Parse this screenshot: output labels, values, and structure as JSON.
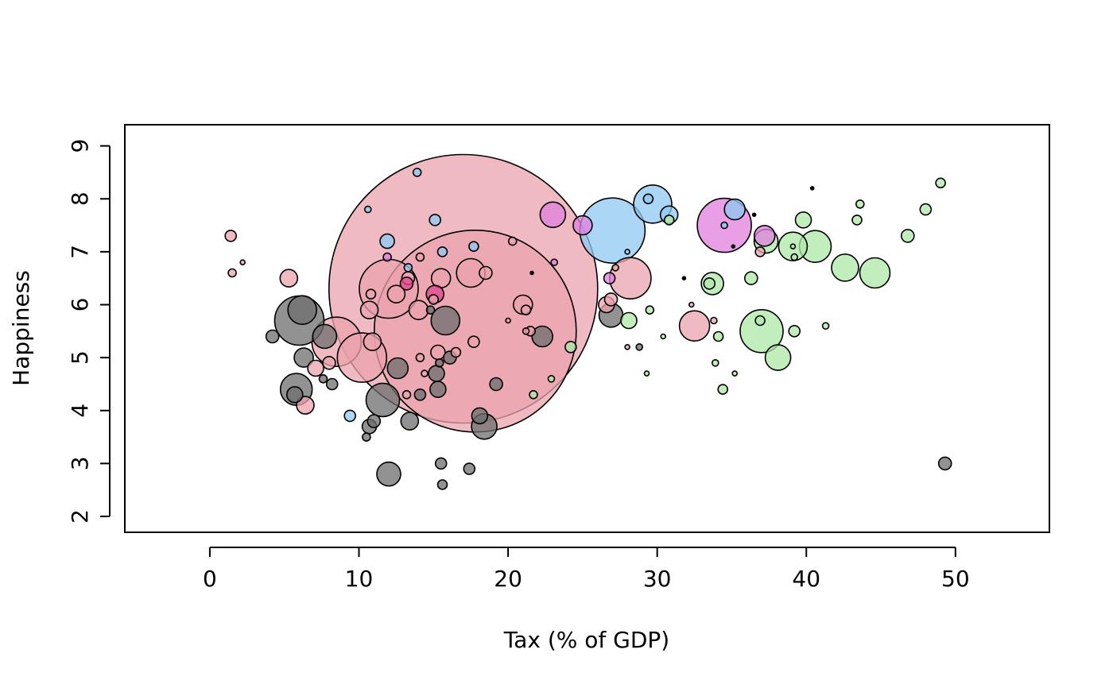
{
  "chart_data": {
    "type": "scatter",
    "subtype": "bubble",
    "title": "",
    "xlabel": "Tax (% of GDP)",
    "ylabel": "Happiness",
    "xlim": [
      -5.7,
      56.3
    ],
    "ylim": [
      1.7,
      9.4
    ],
    "xticks": [
      0,
      10,
      20,
      30,
      40,
      50
    ],
    "yticks": [
      2,
      3,
      4,
      5,
      6,
      7,
      8,
      9
    ],
    "grid": false,
    "legend": "none",
    "size_unit": "bubble radius (relative)",
    "colors": {
      "pink": "#EBA3AE",
      "gray": "#6E6E6E",
      "blue": "#8FC8F1",
      "green": "#AEE8A8",
      "magenta": "#E07FDE",
      "hotpink": "#E0448F",
      "outline": "#000000"
    },
    "series": [
      {
        "name": "pink",
        "points": [
          {
            "x": 17.0,
            "y": 6.3,
            "r": 169
          },
          {
            "x": 17.8,
            "y": 5.5,
            "r": 127
          },
          {
            "x": 12.0,
            "y": 6.3,
            "r": 37
          },
          {
            "x": 8.5,
            "y": 5.3,
            "r": 31
          },
          {
            "x": 10.2,
            "y": 5.0,
            "r": 31
          },
          {
            "x": 28.2,
            "y": 6.5,
            "r": 26
          },
          {
            "x": 32.5,
            "y": 5.6,
            "r": 19
          },
          {
            "x": 17.5,
            "y": 6.6,
            "r": 18
          },
          {
            "x": 15.5,
            "y": 6.5,
            "r": 12
          },
          {
            "x": 14.0,
            "y": 5.9,
            "r": 12
          },
          {
            "x": 21.0,
            "y": 6.0,
            "r": 12
          },
          {
            "x": 12.5,
            "y": 6.2,
            "r": 11
          },
          {
            "x": 10.9,
            "y": 5.3,
            "r": 11
          },
          {
            "x": 5.3,
            "y": 6.5,
            "r": 11
          },
          {
            "x": 10.7,
            "y": 5.9,
            "r": 11
          },
          {
            "x": 6.4,
            "y": 4.1,
            "r": 11
          },
          {
            "x": 7.1,
            "y": 4.8,
            "r": 10
          },
          {
            "x": 26.6,
            "y": 6.0,
            "r": 10
          },
          {
            "x": 15.3,
            "y": 5.1,
            "r": 9
          },
          {
            "x": 13.3,
            "y": 6.5,
            "r": 8
          },
          {
            "x": 18.5,
            "y": 6.6,
            "r": 8
          },
          {
            "x": 8.0,
            "y": 4.9,
            "r": 8
          },
          {
            "x": 26.9,
            "y": 6.1,
            "r": 8
          },
          {
            "x": 17.7,
            "y": 5.3,
            "r": 7
          },
          {
            "x": 1.4,
            "y": 7.3,
            "r": 7
          },
          {
            "x": 10.8,
            "y": 6.2,
            "r": 6
          },
          {
            "x": 16.5,
            "y": 5.1,
            "r": 6
          },
          {
            "x": 21.5,
            "y": 5.5,
            "r": 6
          },
          {
            "x": 21.2,
            "y": 5.9,
            "r": 6
          },
          {
            "x": 36.9,
            "y": 7.0,
            "r": 6
          },
          {
            "x": 15.0,
            "y": 6.1,
            "r": 6
          },
          {
            "x": 20.3,
            "y": 7.2,
            "r": 5
          },
          {
            "x": 1.5,
            "y": 6.6,
            "r": 5
          },
          {
            "x": 14.1,
            "y": 6.9,
            "r": 5
          },
          {
            "x": 13.2,
            "y": 4.3,
            "r": 5
          },
          {
            "x": 14.1,
            "y": 5.0,
            "r": 5
          },
          {
            "x": 14.4,
            "y": 4.7,
            "r": 4
          },
          {
            "x": 21.2,
            "y": 5.5,
            "r": 4
          },
          {
            "x": 33.8,
            "y": 5.7,
            "r": 4
          },
          {
            "x": 27.2,
            "y": 6.7,
            "r": 4
          },
          {
            "x": 2.2,
            "y": 6.8,
            "r": 3
          },
          {
            "x": 20.0,
            "y": 5.7,
            "r": 3
          },
          {
            "x": 28.0,
            "y": 5.2,
            "r": 3
          },
          {
            "x": 32.3,
            "y": 6.0,
            "r": 3
          }
        ]
      },
      {
        "name": "gray",
        "points": [
          {
            "x": 6.0,
            "y": 5.7,
            "r": 31
          },
          {
            "x": 11.6,
            "y": 4.2,
            "r": 21
          },
          {
            "x": 5.8,
            "y": 4.4,
            "r": 20
          },
          {
            "x": 6.2,
            "y": 5.9,
            "r": 18
          },
          {
            "x": 15.8,
            "y": 5.7,
            "r": 18
          },
          {
            "x": 18.4,
            "y": 3.7,
            "r": 16
          },
          {
            "x": 7.7,
            "y": 5.4,
            "r": 15
          },
          {
            "x": 12.0,
            "y": 2.8,
            "r": 15
          },
          {
            "x": 26.9,
            "y": 5.8,
            "r": 15
          },
          {
            "x": 12.6,
            "y": 4.8,
            "r": 13
          },
          {
            "x": 22.3,
            "y": 5.4,
            "r": 13
          },
          {
            "x": 6.3,
            "y": 5.0,
            "r": 12
          },
          {
            "x": 13.4,
            "y": 3.8,
            "r": 11
          },
          {
            "x": 5.7,
            "y": 4.3,
            "r": 10
          },
          {
            "x": 18.1,
            "y": 3.9,
            "r": 10
          },
          {
            "x": 15.3,
            "y": 4.4,
            "r": 10
          },
          {
            "x": 15.2,
            "y": 4.7,
            "r": 10
          },
          {
            "x": 10.7,
            "y": 3.7,
            "r": 9
          },
          {
            "x": 49.3,
            "y": 3.0,
            "r": 8
          },
          {
            "x": 4.2,
            "y": 5.4,
            "r": 8
          },
          {
            "x": 19.2,
            "y": 4.5,
            "r": 8
          },
          {
            "x": 16.1,
            "y": 5.0,
            "r": 8
          },
          {
            "x": 11.0,
            "y": 3.8,
            "r": 8
          },
          {
            "x": 15.5,
            "y": 3.0,
            "r": 7
          },
          {
            "x": 17.4,
            "y": 2.9,
            "r": 7
          },
          {
            "x": 8.2,
            "y": 4.5,
            "r": 7
          },
          {
            "x": 14.1,
            "y": 4.3,
            "r": 7
          },
          {
            "x": 15.6,
            "y": 2.6,
            "r": 6
          },
          {
            "x": 10.5,
            "y": 3.5,
            "r": 5
          },
          {
            "x": 7.6,
            "y": 4.6,
            "r": 5
          },
          {
            "x": 15.4,
            "y": 4.9,
            "r": 5
          },
          {
            "x": 14.8,
            "y": 5.9,
            "r": 5
          },
          {
            "x": 28.8,
            "y": 5.2,
            "r": 4
          }
        ]
      },
      {
        "name": "blue",
        "points": [
          {
            "x": 27.0,
            "y": 7.4,
            "r": 41
          },
          {
            "x": 29.7,
            "y": 7.9,
            "r": 24
          },
          {
            "x": 35.2,
            "y": 7.8,
            "r": 13
          },
          {
            "x": 30.8,
            "y": 7.7,
            "r": 11
          },
          {
            "x": 11.9,
            "y": 7.2,
            "r": 9
          },
          {
            "x": 15.1,
            "y": 7.6,
            "r": 7
          },
          {
            "x": 9.4,
            "y": 3.9,
            "r": 7
          },
          {
            "x": 15.6,
            "y": 7.0,
            "r": 6
          },
          {
            "x": 29.4,
            "y": 8.0,
            "r": 6
          },
          {
            "x": 17.7,
            "y": 7.1,
            "r": 6
          },
          {
            "x": 13.9,
            "y": 8.5,
            "r": 5
          },
          {
            "x": 10.6,
            "y": 7.8,
            "r": 4
          },
          {
            "x": 13.3,
            "y": 6.7,
            "r": 5
          },
          {
            "x": 34.5,
            "y": 7.5,
            "r": 4
          },
          {
            "x": 28.0,
            "y": 7.0,
            "r": 3
          }
        ]
      },
      {
        "name": "green",
        "points": [
          {
            "x": 37.0,
            "y": 5.5,
            "r": 27
          },
          {
            "x": 40.6,
            "y": 7.1,
            "r": 20
          },
          {
            "x": 44.6,
            "y": 6.6,
            "r": 19
          },
          {
            "x": 39.1,
            "y": 7.1,
            "r": 18
          },
          {
            "x": 42.6,
            "y": 6.7,
            "r": 17
          },
          {
            "x": 38.1,
            "y": 5.0,
            "r": 16
          },
          {
            "x": 37.3,
            "y": 7.2,
            "r": 15
          },
          {
            "x": 33.7,
            "y": 6.4,
            "r": 14
          },
          {
            "x": 28.1,
            "y": 5.7,
            "r": 10
          },
          {
            "x": 39.8,
            "y": 7.6,
            "r": 10
          },
          {
            "x": 46.8,
            "y": 7.3,
            "r": 8
          },
          {
            "x": 36.3,
            "y": 6.5,
            "r": 8
          },
          {
            "x": 24.2,
            "y": 5.2,
            "r": 7
          },
          {
            "x": 33.5,
            "y": 6.4,
            "r": 7
          },
          {
            "x": 39.2,
            "y": 5.5,
            "r": 7
          },
          {
            "x": 48.0,
            "y": 7.8,
            "r": 7
          },
          {
            "x": 34.4,
            "y": 4.4,
            "r": 6
          },
          {
            "x": 43.4,
            "y": 7.6,
            "r": 6
          },
          {
            "x": 34.1,
            "y": 5.4,
            "r": 6
          },
          {
            "x": 49.0,
            "y": 8.3,
            "r": 6
          },
          {
            "x": 30.8,
            "y": 7.6,
            "r": 6
          },
          {
            "x": 36.9,
            "y": 5.7,
            "r": 6
          },
          {
            "x": 29.5,
            "y": 5.9,
            "r": 5
          },
          {
            "x": 43.6,
            "y": 7.9,
            "r": 5
          },
          {
            "x": 21.7,
            "y": 4.3,
            "r": 5
          },
          {
            "x": 41.3,
            "y": 5.6,
            "r": 4
          },
          {
            "x": 33.9,
            "y": 4.9,
            "r": 4
          },
          {
            "x": 22.9,
            "y": 4.6,
            "r": 4
          },
          {
            "x": 39.2,
            "y": 6.9,
            "r": 4
          },
          {
            "x": 30.4,
            "y": 5.4,
            "r": 3
          },
          {
            "x": 29.3,
            "y": 4.7,
            "r": 3
          },
          {
            "x": 35.2,
            "y": 4.7,
            "r": 3
          },
          {
            "x": 39.1,
            "y": 7.1,
            "r": 3
          }
        ]
      },
      {
        "name": "magenta",
        "points": [
          {
            "x": 34.5,
            "y": 7.5,
            "r": 34
          },
          {
            "x": 23.0,
            "y": 7.7,
            "r": 16
          },
          {
            "x": 25.0,
            "y": 7.5,
            "r": 12
          },
          {
            "x": 37.2,
            "y": 7.3,
            "r": 13
          },
          {
            "x": 26.8,
            "y": 6.5,
            "r": 7
          },
          {
            "x": 11.9,
            "y": 6.9,
            "r": 5
          },
          {
            "x": 23.1,
            "y": 6.8,
            "r": 4
          }
        ]
      },
      {
        "name": "hotpink",
        "points": [
          {
            "x": 15.1,
            "y": 6.2,
            "r": 11
          },
          {
            "x": 13.2,
            "y": 6.4,
            "r": 8
          }
        ]
      },
      {
        "name": "black",
        "points": [
          {
            "x": 40.4,
            "y": 8.2,
            "r": 2
          },
          {
            "x": 21.6,
            "y": 6.6,
            "r": 2
          },
          {
            "x": 31.8,
            "y": 6.5,
            "r": 2
          },
          {
            "x": 36.5,
            "y": 7.7,
            "r": 2
          },
          {
            "x": 35.1,
            "y": 7.1,
            "r": 2
          }
        ]
      }
    ]
  }
}
